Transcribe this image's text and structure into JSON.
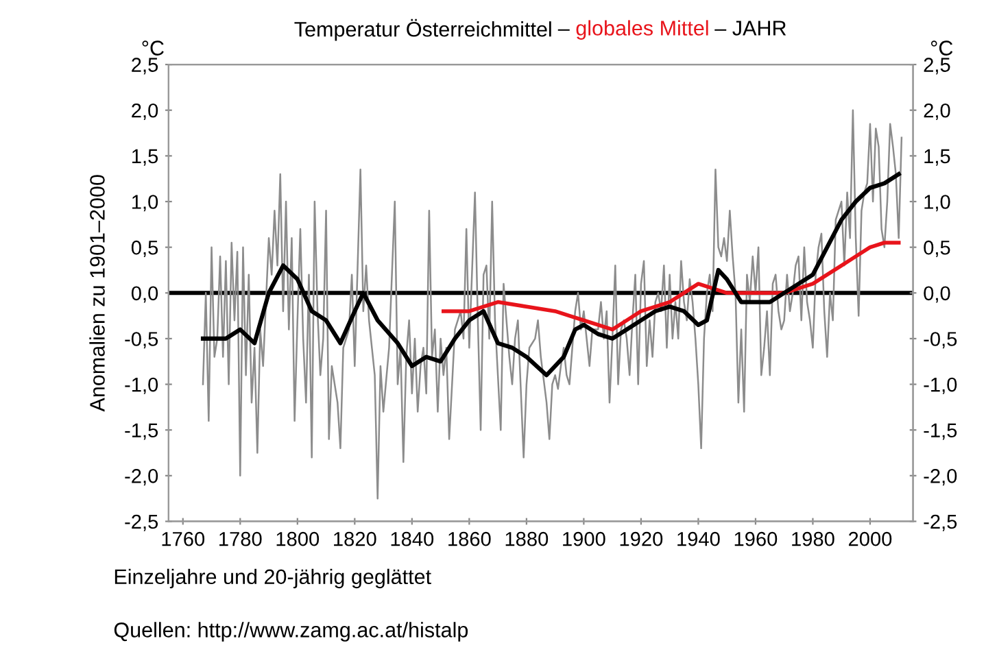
{
  "chart_data": {
    "type": "line",
    "title": "Temperatur Österreichmittel – globales Mittel – JAHR",
    "ylabel": "Anomalien zu 1901–2000",
    "annotations": [
      "°C",
      "°C",
      "Einzeljahre und 20-jährig geglättet",
      "Quellen: http://www.zamg.ac.at/histalp"
    ],
    "xlim": [
      1755,
      2015
    ],
    "xticks": [
      1760,
      1780,
      1800,
      1820,
      1840,
      1860,
      1880,
      1900,
      1920,
      1940,
      1960,
      1980,
      2000
    ],
    "ylim": [
      -2.5,
      2.5
    ],
    "yticks": [
      {
        "value": -2.5,
        "label": "-2,5"
      },
      {
        "value": -2.0,
        "label": "-2,0"
      },
      {
        "value": -1.5,
        "label": "-1,5"
      },
      {
        "value": -1.0,
        "label": "-1,0"
      },
      {
        "value": -0.5,
        "label": "-0,5"
      },
      {
        "value": 0.0,
        "label": "0,0"
      },
      {
        "value": 0.5,
        "label": "0,5"
      },
      {
        "value": 1.0,
        "label": "1,0"
      },
      {
        "value": 1.5,
        "label": "1,5"
      },
      {
        "value": 2.0,
        "label": "2,0"
      },
      {
        "value": 2.5,
        "label": "2,5"
      }
    ],
    "y2lim": [
      -2.5,
      2.5
    ],
    "y2ticks": [
      {
        "value": -2.5,
        "label": "-2,5"
      },
      {
        "value": -2.0,
        "label": "-2,0"
      },
      {
        "value": -1.5,
        "label": "-1,5"
      },
      {
        "value": -1.0,
        "label": "-1,0"
      },
      {
        "value": -0.5,
        "label": "-0,5"
      },
      {
        "value": 0.0,
        "label": "0,0"
      },
      {
        "value": 0.5,
        "label": "0,5"
      },
      {
        "value": 1.0,
        "label": "1,0"
      },
      {
        "value": 1.5,
        "label": "1,5"
      },
      {
        "value": 2.0,
        "label": "2,0"
      },
      {
        "value": 2.5,
        "label": "2,5"
      }
    ],
    "ref_lines": [
      {
        "axis": "y",
        "value": 0,
        "color": "#000000"
      }
    ],
    "grid": false,
    "series": [
      {
        "color": "#000000",
        "x": [
          1767,
          1775,
          1780,
          1785,
          1790,
          1795,
          1800,
          1805,
          1810,
          1815,
          1820,
          1823,
          1828,
          1835,
          1840,
          1845,
          1850,
          1855,
          1860,
          1865,
          1870,
          1875,
          1880,
          1887,
          1893,
          1897,
          1900,
          1905,
          1910,
          1915,
          1920,
          1925,
          1930,
          1935,
          1940,
          1943,
          1947,
          1950,
          1955,
          1960,
          1965,
          1970,
          1975,
          1980,
          1985,
          1990,
          1995,
          2000,
          2005,
          2010
        ],
        "values": [
          -0.5,
          -0.5,
          -0.4,
          -0.55,
          0.0,
          0.3,
          0.15,
          -0.2,
          -0.3,
          -0.55,
          -0.2,
          0.0,
          -0.3,
          -0.55,
          -0.8,
          -0.7,
          -0.75,
          -0.5,
          -0.3,
          -0.2,
          -0.55,
          -0.6,
          -0.7,
          -0.9,
          -0.7,
          -0.4,
          -0.35,
          -0.45,
          -0.5,
          -0.4,
          -0.3,
          -0.2,
          -0.15,
          -0.2,
          -0.35,
          -0.3,
          0.25,
          0.15,
          -0.1,
          -0.1,
          -0.1,
          0.0,
          0.1,
          0.2,
          0.5,
          0.8,
          1.0,
          1.15,
          1.2,
          1.3
        ]
      },
      {
        "color": "#e8141b",
        "x": [
          1851,
          1860,
          1870,
          1880,
          1890,
          1895,
          1900,
          1905,
          1910,
          1915,
          1920,
          1930,
          1940,
          1945,
          1950,
          1960,
          1970,
          1975,
          1980,
          1985,
          1990,
          1995,
          2000,
          2005,
          2010
        ],
        "values": [
          -0.2,
          -0.2,
          -0.1,
          -0.15,
          -0.2,
          -0.25,
          -0.3,
          -0.35,
          -0.4,
          -0.3,
          -0.2,
          -0.1,
          0.1,
          0.05,
          0.0,
          0.0,
          0.0,
          0.05,
          0.1,
          0.2,
          0.3,
          0.4,
          0.5,
          0.55,
          0.55
        ]
      },
      {
        "color": "#8c8c8c",
        "x": [
          1767,
          1768,
          1769,
          1770,
          1771,
          1772,
          1773,
          1774,
          1775,
          1776,
          1777,
          1778,
          1779,
          1780,
          1781,
          1782,
          1783,
          1784,
          1785,
          1786,
          1787,
          1788,
          1790,
          1791,
          1792,
          1793,
          1794,
          1795,
          1796,
          1797,
          1798,
          1799,
          1800,
          1801,
          1802,
          1803,
          1804,
          1805,
          1806,
          1807,
          1808,
          1809,
          1810,
          1811,
          1812,
          1813,
          1814,
          1815,
          1816,
          1818,
          1819,
          1820,
          1822,
          1823,
          1824,
          1825,
          1827,
          1828,
          1829,
          1830,
          1832,
          1834,
          1835,
          1836,
          1837,
          1838,
          1839,
          1840,
          1841,
          1842,
          1843,
          1844,
          1845,
          1846,
          1847,
          1848,
          1849,
          1850,
          1851,
          1852,
          1853,
          1855,
          1857,
          1858,
          1859,
          1860,
          1862,
          1863,
          1864,
          1865,
          1866,
          1867,
          1868,
          1869,
          1870,
          1871,
          1872,
          1873,
          1874,
          1875,
          1876,
          1877,
          1879,
          1880,
          1881,
          1883,
          1884,
          1885,
          1887,
          1888,
          1889,
          1890,
          1891,
          1892,
          1893,
          1894,
          1895,
          1896,
          1897,
          1898,
          1899,
          1900,
          1902,
          1903,
          1905,
          1906,
          1907,
          1908,
          1909,
          1910,
          1911,
          1912,
          1913,
          1914,
          1915,
          1916,
          1917,
          1918,
          1919,
          1920,
          1921,
          1922,
          1923,
          1924,
          1925,
          1926,
          1927,
          1928,
          1929,
          1930,
          1931,
          1932,
          1933,
          1934,
          1935,
          1936,
          1937,
          1938,
          1939,
          1940,
          1941,
          1942,
          1943,
          1944,
          1945,
          1946,
          1947,
          1948,
          1949,
          1950,
          1951,
          1952,
          1953,
          1954,
          1955,
          1956,
          1957,
          1958,
          1959,
          1960,
          1961,
          1962,
          1963,
          1964,
          1965,
          1966,
          1967,
          1968,
          1969,
          1970,
          1971,
          1972,
          1973,
          1974,
          1975,
          1976,
          1977,
          1978,
          1979,
          1980,
          1981,
          1982,
          1983,
          1984,
          1985,
          1986,
          1987,
          1988,
          1989,
          1990,
          1991,
          1992,
          1993,
          1994,
          1995,
          1996,
          1997,
          1998,
          1999,
          2000,
          2001,
          2002,
          2003,
          2004,
          2005,
          2006,
          2007,
          2008,
          2009,
          2010,
          2011
        ],
        "values": [
          -1.0,
          0.0,
          -1.4,
          0.5,
          -0.7,
          -0.5,
          0.4,
          -0.7,
          0.35,
          -1.0,
          0.55,
          -0.3,
          0.45,
          -2.0,
          0.5,
          -0.9,
          0.2,
          -1.2,
          -0.6,
          -1.75,
          -0.4,
          -0.8,
          0.6,
          0.2,
          0.9,
          0.3,
          1.3,
          -0.2,
          1.0,
          -0.4,
          0.6,
          -1.4,
          -0.3,
          0.7,
          -0.5,
          -1.2,
          0.2,
          -1.8,
          1.0,
          -0.2,
          -0.9,
          -0.5,
          0.9,
          -1.6,
          -0.8,
          -1.0,
          -1.2,
          -1.7,
          -0.6,
          -0.4,
          0.2,
          -0.8,
          1.35,
          -0.2,
          0.3,
          -0.3,
          -0.9,
          -2.25,
          -0.8,
          -1.3,
          -0.6,
          1.0,
          -1.0,
          -0.6,
          -1.85,
          -0.7,
          -0.3,
          -1.1,
          -0.5,
          -1.3,
          -0.8,
          -0.6,
          -1.1,
          0.9,
          -0.7,
          -0.4,
          -1.3,
          -0.5,
          -0.9,
          -0.6,
          -1.6,
          -0.4,
          -0.2,
          -0.5,
          0.7,
          -0.6,
          1.1,
          -0.3,
          -1.5,
          0.2,
          0.3,
          -0.5,
          1.0,
          -0.3,
          -0.9,
          -1.5,
          0.1,
          -0.3,
          -0.7,
          -1.0,
          -0.5,
          -0.3,
          -1.8,
          -1.0,
          -0.6,
          -0.5,
          -0.3,
          -0.7,
          -1.2,
          -1.6,
          -1.0,
          -0.9,
          -1.05,
          -0.8,
          -0.6,
          -0.9,
          -1.0,
          -0.6,
          -0.2,
          0.0,
          -0.4,
          -0.2,
          -0.8,
          -0.4,
          -0.4,
          -0.1,
          -0.5,
          -0.2,
          -1.2,
          -0.5,
          0.3,
          -1.0,
          -0.4,
          -0.3,
          -0.5,
          -0.9,
          -0.3,
          0.2,
          -1.0,
          0.1,
          0.35,
          -0.8,
          -0.3,
          -0.7,
          -0.1,
          0.0,
          -0.2,
          0.3,
          -0.6,
          0.2,
          -0.5,
          -0.1,
          -0.5,
          0.35,
          -0.1,
          -0.3,
          0.15,
          -0.1,
          -0.5,
          -1.0,
          -1.7,
          -0.5,
          0.0,
          0.2,
          -0.2,
          1.35,
          0.5,
          0.4,
          0.6,
          0.35,
          0.9,
          0.4,
          0.0,
          -1.2,
          -0.4,
          -1.3,
          0.2,
          -0.1,
          0.4,
          0.0,
          0.5,
          -0.9,
          -0.6,
          -0.2,
          -0.9,
          0.1,
          0.2,
          -0.2,
          -0.4,
          -0.3,
          0.2,
          -0.2,
          0.0,
          0.3,
          0.4,
          -0.3,
          0.5,
          -0.1,
          -0.3,
          -0.6,
          0.2,
          0.5,
          0.65,
          -0.2,
          -0.7,
          0.0,
          -0.3,
          0.8,
          0.9,
          1.0,
          0.3,
          1.1,
          0.6,
          2.0,
          0.6,
          -0.25,
          0.9,
          1.1,
          1.2,
          1.85,
          1.0,
          1.8,
          1.6,
          0.7,
          0.5,
          1.0,
          1.85,
          1.6,
          1.3,
          0.6,
          1.7
        ]
      }
    ]
  }
}
